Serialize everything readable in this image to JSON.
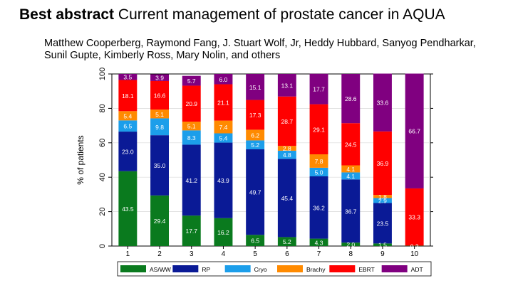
{
  "slide": {
    "title_bold": "Best abstract",
    "title_rest": "Current management of prostate cancer in AQUA",
    "authors": "Matthew Cooperberg, Raymond Fang, J. Stuart Wolf, Jr, Heddy Hubbard, Sanyog Pendharkar, Sunil Gupte, Kimberly Ross, Mary Nolin, and others"
  },
  "chart_data": {
    "type": "bar",
    "stacked": true,
    "title": "",
    "xlabel": "",
    "ylabel": "% of patients",
    "ylim": [
      0,
      100
    ],
    "yticks": [
      0,
      20,
      40,
      60,
      80,
      100
    ],
    "categories": [
      "1",
      "2",
      "3",
      "4",
      "5",
      "6",
      "7",
      "8",
      "9",
      "10"
    ],
    "legend_position": "bottom",
    "series": [
      {
        "name": "AS/WW",
        "color": "#0a7a1e",
        "values": [
          43.5,
          29.4,
          17.7,
          16.2,
          6.5,
          5.2,
          4.3,
          2.0,
          1.5,
          0.2
        ],
        "labels": [
          "43.5",
          "29.4",
          "17.7",
          "16.2",
          "6.5",
          "5.2",
          "4.3",
          "2.0",
          "1.5",
          "0.2"
        ]
      },
      {
        "name": "RP",
        "color": "#0a1a96",
        "values": [
          23.0,
          35.0,
          41.2,
          43.9,
          49.7,
          45.4,
          36.2,
          36.7,
          23.5,
          0.0
        ],
        "labels": [
          "23.0",
          "35.0",
          "41.2",
          "43.9",
          "49.7",
          "45.4",
          "36.2",
          "36.7",
          "23.5",
          ""
        ]
      },
      {
        "name": "Cryo",
        "color": "#1c9eea",
        "values": [
          6.5,
          9.8,
          8.3,
          5.4,
          5.2,
          4.8,
          5.0,
          4.1,
          2.9,
          0.0
        ],
        "labels": [
          "6.5",
          "9.8",
          "8.3",
          "5.4",
          "5.2",
          "4.8",
          "5.0",
          "4.1",
          "2.9",
          ""
        ]
      },
      {
        "name": "Brachy",
        "color": "#ff8a00",
        "values": [
          5.4,
          5.1,
          5.1,
          7.4,
          6.2,
          2.8,
          7.8,
          4.1,
          1.8,
          0.0
        ],
        "labels": [
          "5.4",
          "5.1",
          "5.1",
          "7.4",
          "6.2",
          "2.8",
          "7.8",
          "4.1",
          "1.8",
          ""
        ]
      },
      {
        "name": "EBRT",
        "color": "#ff0000",
        "values": [
          18.1,
          16.6,
          20.9,
          21.1,
          17.3,
          28.7,
          29.1,
          24.5,
          36.9,
          33.3
        ],
        "labels": [
          "18.1",
          "16.6",
          "20.9",
          "21.1",
          "17.3",
          "28.7",
          "29.1",
          "24.5",
          "36.9",
          "33.3"
        ]
      },
      {
        "name": "ADT",
        "color": "#800080",
        "values": [
          3.5,
          3.9,
          5.7,
          6.0,
          15.1,
          13.1,
          17.7,
          28.6,
          33.6,
          66.7
        ],
        "labels": [
          "3.5",
          "3.9",
          "5.7",
          "6.0",
          "15.1",
          "13.1",
          "17.7",
          "28.6",
          "33.6",
          "66.7"
        ]
      }
    ]
  }
}
